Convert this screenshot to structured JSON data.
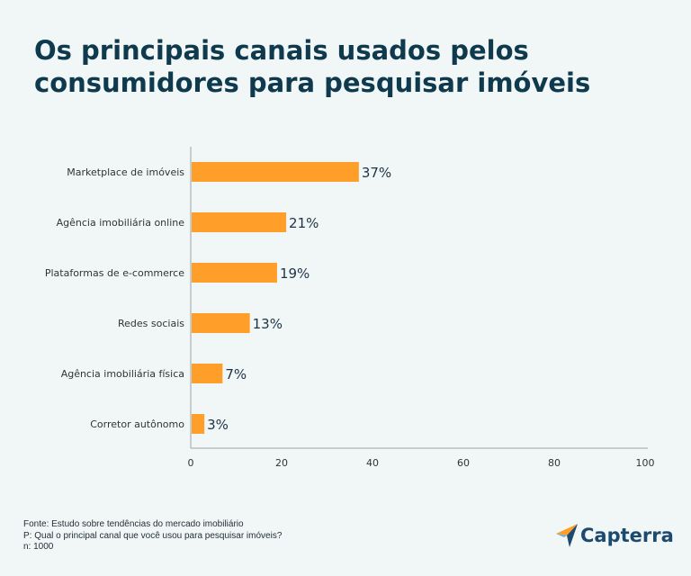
{
  "chart_data": {
    "type": "bar",
    "orientation": "horizontal",
    "title": "Os principais canais usados pelos consumidores para pesquisar imóveis",
    "categories": [
      "Marketplace de imóveis",
      "Agência imobiliária online",
      "Plataformas de e-commerce",
      "Redes sociais",
      "Agência imobiliária física",
      "Corretor autônomo"
    ],
    "values": [
      37,
      21,
      19,
      13,
      7,
      3
    ],
    "labels": [
      "37%",
      "21%",
      "19%",
      "13%",
      "7%",
      "3%"
    ],
    "xlim": [
      0,
      100
    ],
    "xticks": [
      "0",
      "20",
      "40",
      "60",
      "80",
      "100"
    ],
    "color": "#ff9f2a",
    "grid": false
  },
  "footer": {
    "source": "Fonte: Estudo sobre tendências do mercado imobiliário",
    "question": "P: Qual o principal canal que você usou para pesquisar imóveis?",
    "n": "n: 1000"
  },
  "logo": {
    "text": "Capterra"
  }
}
